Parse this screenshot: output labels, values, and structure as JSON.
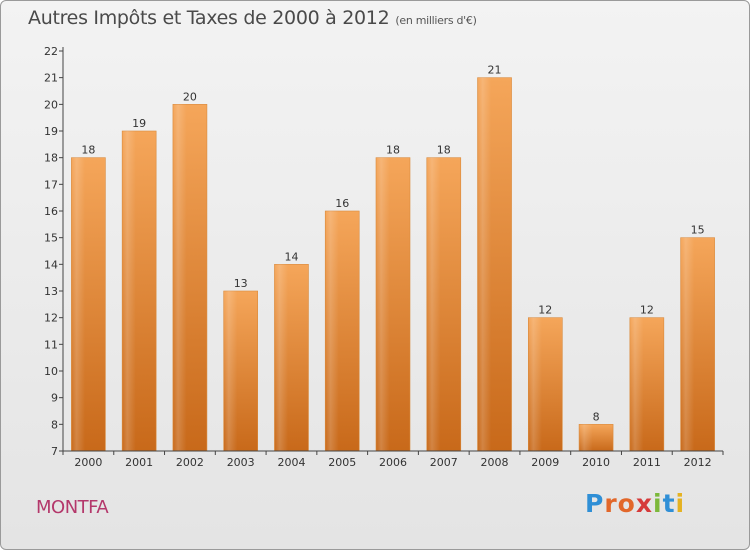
{
  "header": {
    "title": "Autres Impôts et Taxes de 2000 à 2012",
    "unit": "(en milliers d'€)"
  },
  "commune": "MONTFA",
  "logo": {
    "letters": [
      "P",
      "r",
      "o",
      "x",
      "i",
      "t",
      "i"
    ],
    "colors": [
      "#2f8fd6",
      "#e2672a",
      "#e2672a",
      "#d63a3a",
      "#7cb83b",
      "#2f8fd6",
      "#e5b221"
    ]
  },
  "colors": {
    "bar_top": "#f5a65a",
    "bar_bottom": "#c8691a",
    "commune": "#b4386b"
  },
  "chart_data": {
    "type": "bar",
    "title": "Autres Impôts et Taxes de 2000 à 2012",
    "subtitle": "(en milliers d'€)",
    "categories": [
      "2000",
      "2001",
      "2002",
      "2003",
      "2004",
      "2005",
      "2006",
      "2007",
      "2008",
      "2009",
      "2010",
      "2011",
      "2012"
    ],
    "values": [
      18,
      19,
      20,
      13,
      14,
      16,
      18,
      18,
      21,
      12,
      8,
      12,
      15
    ],
    "ylim": [
      7,
      22
    ],
    "yticks": [
      7,
      8,
      9,
      10,
      11,
      12,
      13,
      14,
      15,
      16,
      17,
      18,
      19,
      20,
      21,
      22
    ],
    "grid": false,
    "data_labels": true
  }
}
